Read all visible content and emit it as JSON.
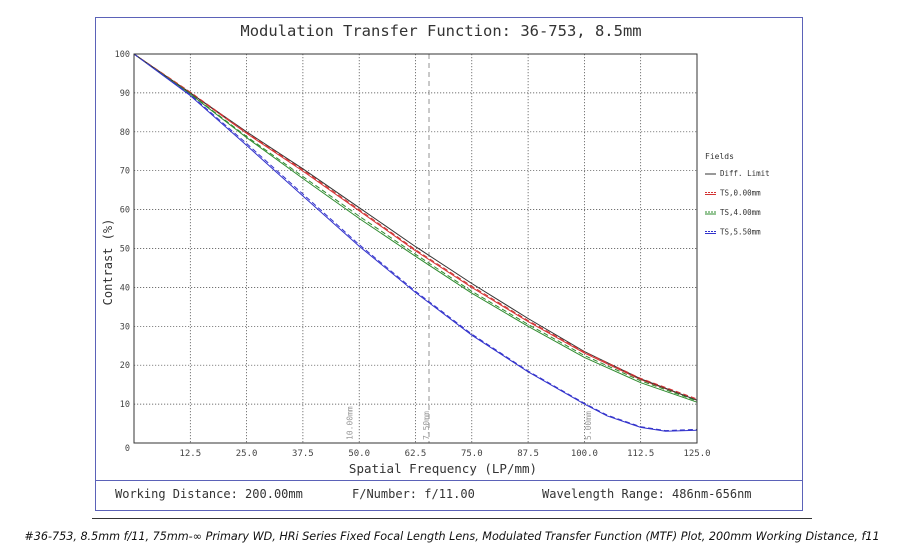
{
  "top_clipped_text": "... , ... ... ... ... ... ...",
  "chart_data": {
    "type": "line",
    "title": "Modulation Transfer Function: 36-753, 8.5mm",
    "xlabel": "Spatial Frequency (LP/mm)",
    "ylabel": "Contrast (%)",
    "xlim": [
      0,
      125
    ],
    "ylim": [
      0,
      100
    ],
    "x_ticks": [
      "12.5",
      "25.0",
      "37.5",
      "50.0",
      "62.5",
      "75.0",
      "87.5",
      "100.0",
      "112.5",
      "125.0"
    ],
    "x_tick_values": [
      12.5,
      25,
      37.5,
      50,
      62.5,
      75,
      87.5,
      100,
      112.5,
      125
    ],
    "y_ticks": [
      "0",
      "10",
      "20",
      "30",
      "40",
      "50",
      "60",
      "70",
      "80",
      "90",
      "100"
    ],
    "y_tick_values": [
      0,
      10,
      20,
      30,
      40,
      50,
      60,
      70,
      80,
      90,
      100
    ],
    "legend_title": "Fields",
    "grid": true,
    "series": [
      {
        "name": "Diff. Limit",
        "color": "#333333",
        "dash": "solid",
        "x": [
          0,
          12.5,
          25,
          37.5,
          50,
          62.5,
          75,
          87.5,
          100,
          112.5,
          125
        ],
        "y": [
          100,
          90,
          80,
          70.5,
          60.5,
          50.5,
          41,
          32,
          23.5,
          16.5,
          11
        ]
      },
      {
        "name": "TS,0.00mm",
        "color": "#d33333",
        "dash": "dashed",
        "x": [
          0,
          12.5,
          25,
          37.5,
          50,
          62.5,
          75,
          87.5,
          100,
          112.5,
          125
        ],
        "y": [
          100,
          90.2,
          79.8,
          70.2,
          60,
          49.7,
          40.3,
          31.5,
          23.4,
          16.6,
          11.3
        ]
      },
      {
        "name": "TS,4.00mm",
        "color": "#2e8b2e",
        "dash": "dashed",
        "x": [
          0,
          12.5,
          25,
          37.5,
          50,
          62.5,
          75,
          87.5,
          100,
          112.5,
          125
        ],
        "y": [
          100,
          89.8,
          78.8,
          68.5,
          58.3,
          48.5,
          39,
          30.5,
          22.5,
          16,
          10.8
        ]
      },
      {
        "name": "TS,5.50mm",
        "color": "#3333cc",
        "dash": "dashed",
        "x": [
          0,
          12.5,
          25,
          37.5,
          50,
          62.5,
          75,
          87.5,
          100,
          105,
          112.5,
          118,
          125
        ],
        "y": [
          100,
          89.5,
          77,
          64,
          51,
          39,
          28,
          18.5,
          10.2,
          7.2,
          4.2,
          3.2,
          3.5
        ]
      }
    ],
    "solid_series_lines": [
      {
        "name": "TS,0.00mm solid",
        "color": "#d33333",
        "x": [
          0,
          12.5,
          25,
          37.5,
          50,
          62.5,
          75,
          87.5,
          100,
          112.5,
          125
        ],
        "y": [
          100,
          90,
          79.6,
          69.9,
          59.7,
          49.4,
          40,
          31.2,
          23.1,
          16.3,
          11
        ]
      },
      {
        "name": "TS,4.00mm solid",
        "color": "#2e8b2e",
        "x": [
          0,
          12.5,
          25,
          37.5,
          50,
          62.5,
          75,
          87.5,
          100,
          112.5,
          125
        ],
        "y": [
          100,
          89.7,
          78.5,
          68,
          57.7,
          48,
          38.5,
          30,
          22,
          15.5,
          10.5
        ]
      },
      {
        "name": "TS,5.50mm solid",
        "color": "#3333cc",
        "x": [
          0,
          12.5,
          25,
          37.5,
          50,
          62.5,
          75,
          87.5,
          100,
          105,
          112.5,
          118,
          125
        ],
        "y": [
          100,
          89.3,
          76.5,
          63.5,
          50.6,
          38.7,
          27.7,
          18.3,
          10,
          7,
          4,
          3,
          3.3
        ]
      }
    ],
    "annotations": [
      {
        "text": "10.00mm",
        "x": 48.5,
        "dashed_line": false
      },
      {
        "text": "7.50mm",
        "x": 65.5,
        "dashed_line": true
      },
      {
        "text": "5.00mm",
        "x": 101.5,
        "dashed_line": false
      }
    ]
  },
  "info_bar": {
    "working_distance": "Working Distance: 200.00mm",
    "f_number": "F/Number: f/11.00",
    "wavelength": "Wavelength Range: 486nm-656nm"
  },
  "caption": "#36-753, 8.5mm f/11, 75mm-∞ Primary WD, HRi Series Fixed Focal Length Lens, Modulated Transfer Function (MTF) Plot, 200mm Working Distance, f11"
}
